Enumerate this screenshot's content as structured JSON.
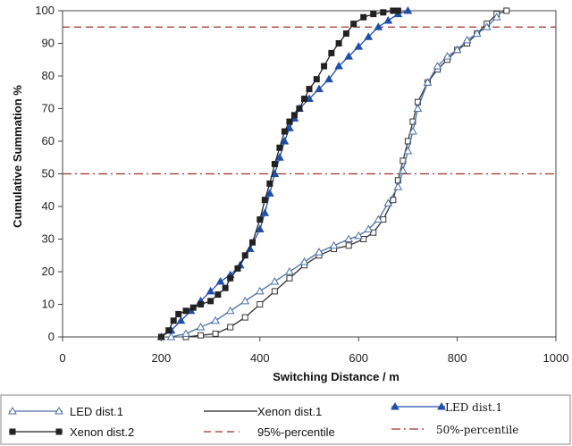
{
  "chart_data": {
    "type": "line",
    "title": "",
    "xlabel": "Switching Distance / m",
    "ylabel": "Cumulative Summation %",
    "xlim": [
      0,
      1000
    ],
    "ylim": [
      0,
      100
    ],
    "xticks": [
      0,
      200,
      400,
      600,
      800,
      1000
    ],
    "yticks": [
      0,
      10,
      20,
      30,
      40,
      50,
      60,
      70,
      80,
      90,
      100
    ],
    "grid": false,
    "legend_position": "bottom",
    "reference_lines": [
      {
        "name": "95%-percentile",
        "y": 95,
        "color": "#a0302a",
        "style": "dashed"
      },
      {
        "name": "50%-percentile",
        "y": 50,
        "color": "#a0302a",
        "style": "dashdot"
      }
    ],
    "legend": [
      {
        "label": "LED dist.1",
        "marker": "triangle-open",
        "color": "#4a6fa5"
      },
      {
        "label": "Xenon dist.1",
        "marker": "none",
        "color": "#222222"
      },
      {
        "label": "LED dist.1",
        "marker": "triangle-filled",
        "color": "#1f4fa8"
      },
      {
        "label": "Xenon dist.2",
        "marker": "square-filled",
        "color": "#222222"
      },
      {
        "label": "95%-percentile",
        "marker": "dash",
        "color": "#a0302a"
      },
      {
        "label": "50%-percentile",
        "marker": "dashdot",
        "color": "#a0302a"
      }
    ],
    "series": [
      {
        "name": "Xenon dist.2",
        "marker": "square-filled",
        "color": "#222222",
        "x": [
          200,
          215,
          225,
          235,
          250,
          265,
          280,
          300,
          315,
          330,
          340,
          355,
          370,
          385,
          400,
          410,
          420,
          430,
          440,
          450,
          460,
          470,
          480,
          490,
          500,
          515,
          530,
          545,
          560,
          575,
          590,
          610,
          630,
          650,
          670,
          680
        ],
        "y": [
          0,
          2,
          5,
          7,
          8,
          9,
          10,
          11,
          13,
          15,
          18,
          21,
          25,
          29,
          36,
          42,
          47,
          53,
          58,
          63,
          66,
          68,
          70,
          73,
          76,
          79,
          83,
          87,
          90,
          93,
          96,
          98,
          99,
          99.5,
          100,
          100
        ]
      },
      {
        "name": "LED dist.1 (filled)",
        "marker": "triangle-filled",
        "color": "#1f4fa8",
        "x": [
          200,
          220,
          240,
          260,
          280,
          300,
          320,
          340,
          360,
          380,
          400,
          410,
          420,
          430,
          440,
          450,
          460,
          470,
          480,
          500,
          520,
          540,
          560,
          580,
          600,
          620,
          640,
          660,
          680,
          700
        ],
        "y": [
          0,
          2,
          5,
          8,
          11,
          14,
          17,
          19,
          22,
          27,
          33,
          38,
          44,
          50,
          55,
          60,
          64,
          67,
          70,
          73,
          76,
          79,
          83,
          86,
          89,
          92,
          95,
          97,
          99,
          100
        ]
      },
      {
        "name": "LED dist.1 (open)",
        "marker": "triangle-open",
        "color": "#4a6fa5",
        "x": [
          220,
          250,
          280,
          310,
          340,
          370,
          400,
          430,
          460,
          490,
          520,
          550,
          580,
          600,
          620,
          640,
          660,
          680,
          690,
          700,
          710,
          720,
          740,
          760,
          780,
          800,
          820,
          840,
          860,
          880
        ],
        "y": [
          0,
          1,
          3,
          5,
          8,
          11,
          14,
          17,
          20,
          23,
          26,
          28,
          30,
          31,
          33,
          36,
          41,
          46,
          51,
          57,
          63,
          70,
          78,
          83,
          86,
          88,
          91,
          93,
          95,
          98
        ]
      },
      {
        "name": "Xenon dist.1",
        "marker": "square-open",
        "color": "#333333",
        "x": [
          250,
          280,
          310,
          340,
          370,
          400,
          430,
          460,
          490,
          520,
          550,
          580,
          610,
          630,
          650,
          670,
          680,
          690,
          700,
          710,
          720,
          740,
          760,
          780,
          800,
          820,
          840,
          860,
          880,
          900
        ],
        "y": [
          0,
          0.5,
          1,
          3,
          6,
          10,
          14,
          18,
          22,
          25,
          27,
          28,
          30,
          32,
          36,
          42,
          48,
          54,
          60,
          66,
          72,
          78,
          82,
          85,
          88,
          90,
          93,
          96,
          99,
          100
        ]
      }
    ]
  }
}
